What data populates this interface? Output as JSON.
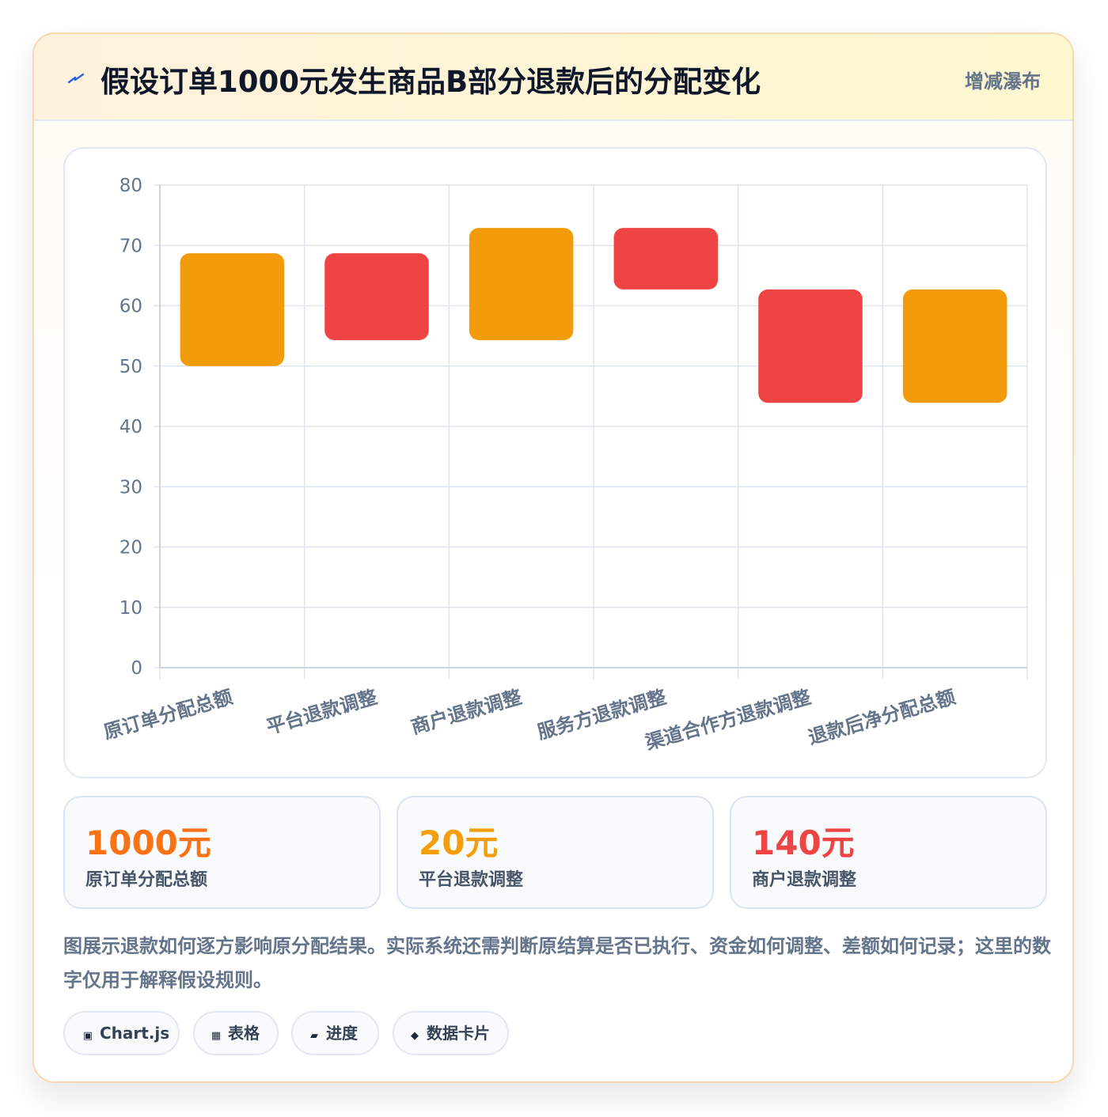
{
  "header": {
    "title": "假设订单1000元发生商品B部分退款后的分配变化",
    "tag": "增减瀑布",
    "icon": "bolt-icon"
  },
  "chart_data": {
    "type": "bar",
    "subtype": "waterfall-floating",
    "categories": [
      "原订单分配总额",
      "平台退款调整",
      "商户退款调整",
      "服务方退款调整",
      "渠道合作方退款调整",
      "退款后净分配总额"
    ],
    "ranges": [
      [
        50,
        68.7
      ],
      [
        54.3,
        68.7
      ],
      [
        54.3,
        72.9
      ],
      [
        62.7,
        72.9
      ],
      [
        43.9,
        62.7
      ],
      [
        43.9,
        62.7
      ]
    ],
    "kinds": [
      "total",
      "decrease",
      "increase",
      "decrease",
      "decrease",
      "total"
    ],
    "colors": {
      "total": "#f39c0b",
      "increase": "#f39c0b",
      "decrease": "#ef4444"
    },
    "ylim": [
      0,
      80
    ],
    "yticks": [
      0,
      10,
      20,
      30,
      40,
      50,
      60,
      70,
      80
    ],
    "grid": true,
    "legend": "none"
  },
  "stats": [
    {
      "value": "1000元",
      "label": "原订单分配总额",
      "color": "#f97316"
    },
    {
      "value": "20元",
      "label": "平台退款调整",
      "color": "#f59e0b"
    },
    {
      "value": "140元",
      "label": "商户退款调整",
      "color": "#ef4444"
    }
  ],
  "note": "图展示退款如何逐方影响原分配结果。实际系统还需判断原结算是否已执行、资金如何调整、差额如何记录；这里的数字仅用于解释假设规则。",
  "chips": [
    {
      "icon": "▣",
      "icon_name": "chart-icon",
      "label": "Chart.js"
    },
    {
      "icon": "▦",
      "icon_name": "table-icon",
      "label": "表格"
    },
    {
      "icon": "▰",
      "icon_name": "progress-icon",
      "label": "进度"
    },
    {
      "icon": "◆",
      "icon_name": "data-card-icon",
      "label": "数据卡片"
    }
  ]
}
